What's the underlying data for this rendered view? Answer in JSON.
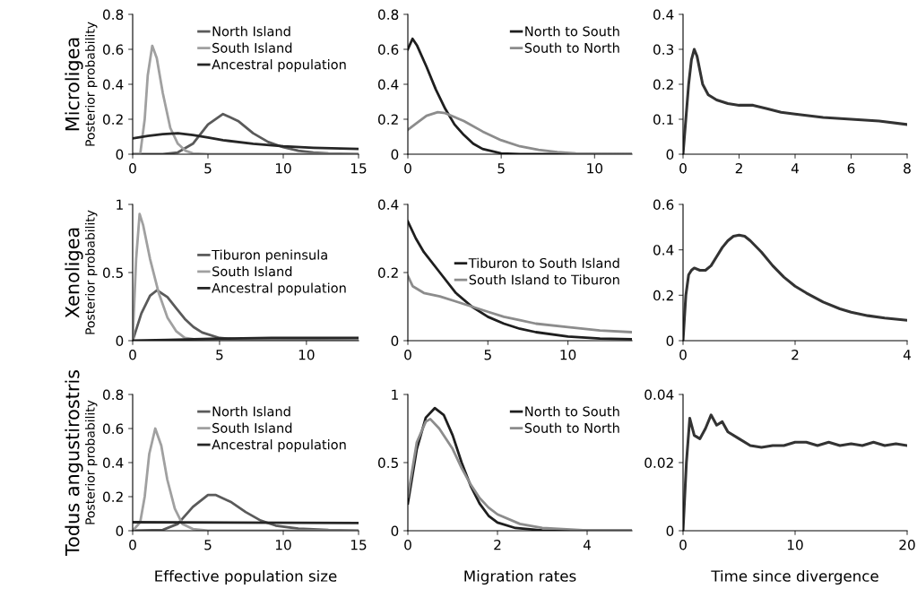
{
  "chart_data": [
    {
      "type": "line",
      "ylabel": "Posterior probability",
      "annotations": [
        "Microligea"
      ],
      "xlim": [
        0,
        15
      ],
      "xticks": [
        0,
        5,
        10,
        15
      ],
      "ylim": [
        0,
        0.8
      ],
      "yticks": [
        0,
        0.2,
        0.4,
        0.6,
        0.8
      ],
      "legend": "top right",
      "grid": false,
      "series": [
        {
          "name": "North Island",
          "color": "#5a5a5a",
          "x": [
            0,
            2,
            3,
            4,
            5,
            6,
            7,
            8,
            9,
            10,
            11,
            12,
            13,
            15
          ],
          "values": [
            0,
            0,
            0.01,
            0.06,
            0.17,
            0.23,
            0.19,
            0.12,
            0.07,
            0.04,
            0.02,
            0.01,
            0.005,
            0
          ]
        },
        {
          "name": "South Island",
          "color": "#a0a0a0",
          "x": [
            0,
            0.5,
            0.8,
            1.0,
            1.3,
            1.6,
            2,
            2.5,
            3,
            3.5,
            4,
            5,
            15
          ],
          "values": [
            0,
            0,
            0.2,
            0.45,
            0.62,
            0.55,
            0.35,
            0.15,
            0.06,
            0.02,
            0.005,
            0,
            0
          ]
        },
        {
          "name": "Ancestral population",
          "color": "#262626",
          "x": [
            0,
            1,
            2,
            3,
            4,
            5,
            6,
            8,
            10,
            12,
            15
          ],
          "values": [
            0.09,
            0.105,
            0.115,
            0.12,
            0.11,
            0.095,
            0.08,
            0.06,
            0.045,
            0.037,
            0.03
          ]
        }
      ]
    },
    {
      "type": "line",
      "xlim": [
        0,
        12
      ],
      "xticks": [
        0,
        5,
        10
      ],
      "ylim": [
        0,
        0.8
      ],
      "yticks": [
        0,
        0.2,
        0.4,
        0.6,
        0.8
      ],
      "legend": "top right",
      "grid": false,
      "series": [
        {
          "name": "North to South",
          "color": "#1e1e1e",
          "x": [
            0,
            0.25,
            0.5,
            1,
            1.5,
            2,
            2.5,
            3,
            3.5,
            4,
            5,
            6,
            12
          ],
          "values": [
            0.6,
            0.66,
            0.62,
            0.5,
            0.37,
            0.26,
            0.17,
            0.11,
            0.06,
            0.03,
            0.005,
            0,
            0
          ]
        },
        {
          "name": "South to North",
          "color": "#8c8c8c",
          "x": [
            0,
            0.5,
            1,
            1.6,
            2,
            3,
            4,
            5,
            6,
            7,
            8,
            9,
            10,
            12
          ],
          "values": [
            0.14,
            0.18,
            0.22,
            0.24,
            0.235,
            0.19,
            0.13,
            0.08,
            0.045,
            0.025,
            0.012,
            0.005,
            0.002,
            0
          ]
        }
      ]
    },
    {
      "type": "line",
      "xlim": [
        0,
        8
      ],
      "xticks": [
        0,
        2,
        4,
        6,
        8
      ],
      "ylim": [
        0,
        0.4
      ],
      "yticks": [
        0,
        0.1,
        0.2,
        0.3,
        0.4
      ],
      "grid": false,
      "series": [
        {
          "color": "#333333",
          "x": [
            0,
            0.1,
            0.2,
            0.3,
            0.4,
            0.5,
            0.7,
            0.9,
            1.2,
            1.6,
            2,
            2.5,
            3,
            3.5,
            4,
            5,
            6,
            7,
            8
          ],
          "values": [
            0,
            0.1,
            0.2,
            0.27,
            0.3,
            0.28,
            0.2,
            0.17,
            0.155,
            0.145,
            0.14,
            0.14,
            0.13,
            0.12,
            0.115,
            0.105,
            0.1,
            0.095,
            0.085
          ]
        }
      ]
    },
    {
      "type": "line",
      "ylabel": "Posterior probability",
      "annotations": [
        "Xenoligea"
      ],
      "xlim": [
        0,
        13
      ],
      "xticks": [
        0,
        5,
        10
      ],
      "ylim": [
        0,
        1
      ],
      "yticks": [
        0,
        0.5,
        1
      ],
      "legend": "right",
      "grid": false,
      "series": [
        {
          "name": "Tiburon peninsula",
          "color": "#5a5a5a",
          "x": [
            0,
            0.5,
            1,
            1.4,
            2,
            2.5,
            3,
            3.5,
            4,
            5,
            6,
            13
          ],
          "values": [
            0,
            0.2,
            0.33,
            0.37,
            0.32,
            0.24,
            0.16,
            0.1,
            0.06,
            0.02,
            0.01,
            0
          ]
        },
        {
          "name": "South Island",
          "color": "#a0a0a0",
          "x": [
            0,
            0.2,
            0.4,
            0.6,
            1,
            1.5,
            2,
            2.5,
            3,
            4,
            13
          ],
          "values": [
            0,
            0.6,
            0.93,
            0.85,
            0.6,
            0.35,
            0.17,
            0.07,
            0.02,
            0.003,
            0
          ]
        },
        {
          "name": "Ancestral population",
          "color": "#262626",
          "x": [
            0,
            2,
            5,
            8,
            13
          ],
          "values": [
            0,
            0.005,
            0.015,
            0.02,
            0.02
          ]
        }
      ]
    },
    {
      "type": "line",
      "xlim": [
        0,
        14
      ],
      "xticks": [
        0,
        5,
        10
      ],
      "ylim": [
        0,
        0.4
      ],
      "yticks": [
        0,
        0.2,
        0.4
      ],
      "legend": "right",
      "grid": false,
      "series": [
        {
          "name": "Tiburon to South Island",
          "color": "#1e1e1e",
          "x": [
            0,
            0.5,
            1,
            2,
            3,
            4,
            5,
            6,
            7,
            8,
            10,
            12,
            14
          ],
          "values": [
            0.35,
            0.3,
            0.26,
            0.2,
            0.14,
            0.1,
            0.07,
            0.05,
            0.035,
            0.025,
            0.012,
            0.006,
            0.004
          ]
        },
        {
          "name": "South Island to Tiburon",
          "color": "#8c8c8c",
          "x": [
            0,
            0.3,
            1,
            2,
            3,
            4,
            5,
            6,
            7,
            8,
            10,
            12,
            14
          ],
          "values": [
            0.19,
            0.16,
            0.14,
            0.13,
            0.115,
            0.1,
            0.085,
            0.07,
            0.06,
            0.05,
            0.04,
            0.03,
            0.025
          ]
        }
      ]
    },
    {
      "type": "line",
      "xlim": [
        0,
        4
      ],
      "xticks": [
        0,
        2,
        4
      ],
      "ylim": [
        0,
        0.6
      ],
      "yticks": [
        0,
        0.2,
        0.4,
        0.6
      ],
      "grid": false,
      "series": [
        {
          "color": "#333333",
          "x": [
            0,
            0.05,
            0.1,
            0.15,
            0.2,
            0.3,
            0.4,
            0.5,
            0.6,
            0.7,
            0.8,
            0.9,
            1.0,
            1.1,
            1.2,
            1.4,
            1.6,
            1.8,
            2.0,
            2.2,
            2.5,
            2.8,
            3.0,
            3.3,
            3.6,
            4.0
          ],
          "values": [
            0,
            0.2,
            0.29,
            0.31,
            0.32,
            0.31,
            0.31,
            0.33,
            0.37,
            0.41,
            0.44,
            0.46,
            0.465,
            0.46,
            0.44,
            0.39,
            0.33,
            0.28,
            0.24,
            0.21,
            0.17,
            0.14,
            0.125,
            0.11,
            0.1,
            0.09
          ]
        }
      ]
    },
    {
      "type": "line",
      "ylabel": "Posterior probability",
      "xlabel": "Effective population size",
      "annotations": [
        "Todus angustirostris"
      ],
      "xlim": [
        0,
        15
      ],
      "xticks": [
        0,
        5,
        10,
        15
      ],
      "ylim": [
        0,
        0.8
      ],
      "yticks": [
        0,
        0.2,
        0.4,
        0.6,
        0.8
      ],
      "legend": "top right",
      "grid": false,
      "series": [
        {
          "name": "North Island",
          "color": "#5a5a5a",
          "x": [
            0,
            2,
            3,
            4,
            5,
            5.5,
            6.5,
            7.5,
            8.5,
            9.5,
            11,
            13,
            15
          ],
          "values": [
            0,
            0.005,
            0.04,
            0.14,
            0.21,
            0.21,
            0.17,
            0.11,
            0.06,
            0.03,
            0.012,
            0.004,
            0
          ]
        },
        {
          "name": "South Island",
          "color": "#a0a0a0",
          "x": [
            0,
            0.5,
            0.8,
            1.1,
            1.5,
            1.9,
            2.3,
            2.8,
            3.3,
            4,
            5,
            15
          ],
          "values": [
            0,
            0.05,
            0.2,
            0.45,
            0.6,
            0.5,
            0.3,
            0.13,
            0.04,
            0.01,
            0,
            0
          ]
        },
        {
          "name": "Ancestral population",
          "color": "#262626",
          "x": [
            0,
            15
          ],
          "values": [
            0.05,
            0.045
          ]
        }
      ]
    },
    {
      "type": "line",
      "xlabel": "Migration rates",
      "xlim": [
        0,
        5
      ],
      "xticks": [
        0,
        2,
        4
      ],
      "ylim": [
        0,
        1
      ],
      "yticks": [
        0,
        0.5,
        1
      ],
      "legend": "top right",
      "grid": false,
      "series": [
        {
          "name": "North to South",
          "color": "#1e1e1e",
          "x": [
            0,
            0.2,
            0.4,
            0.6,
            0.8,
            1,
            1.2,
            1.4,
            1.6,
            1.8,
            2,
            2.4,
            3,
            5
          ],
          "values": [
            0.2,
            0.6,
            0.83,
            0.9,
            0.85,
            0.7,
            0.5,
            0.33,
            0.2,
            0.11,
            0.06,
            0.02,
            0.003,
            0
          ]
        },
        {
          "name": "South to North",
          "color": "#8c8c8c",
          "x": [
            0,
            0.2,
            0.4,
            0.5,
            0.7,
            1,
            1.2,
            1.4,
            1.6,
            1.8,
            2,
            2.5,
            3,
            4,
            5
          ],
          "values": [
            0.25,
            0.65,
            0.8,
            0.82,
            0.75,
            0.6,
            0.46,
            0.34,
            0.24,
            0.17,
            0.12,
            0.05,
            0.02,
            0.003,
            0
          ]
        }
      ]
    },
    {
      "type": "line",
      "xlabel": "Time since divergence",
      "xlim": [
        0,
        20
      ],
      "xticks": [
        0,
        10,
        20
      ],
      "ylim": [
        0,
        0.04
      ],
      "yticks": [
        0,
        0.02,
        0.04
      ],
      "grid": false,
      "series": [
        {
          "color": "#333333",
          "x": [
            0,
            0.3,
            0.6,
            1,
            1.5,
            2,
            2.5,
            3,
            3.5,
            4,
            5,
            6,
            7,
            8,
            9,
            10,
            11,
            12,
            13,
            14,
            15,
            16,
            17,
            18,
            19,
            20
          ],
          "values": [
            0,
            0.02,
            0.033,
            0.028,
            0.027,
            0.03,
            0.034,
            0.031,
            0.032,
            0.029,
            0.027,
            0.025,
            0.0245,
            0.025,
            0.025,
            0.026,
            0.026,
            0.025,
            0.026,
            0.025,
            0.0255,
            0.025,
            0.026,
            0.025,
            0.0255,
            0.025
          ]
        }
      ]
    }
  ]
}
